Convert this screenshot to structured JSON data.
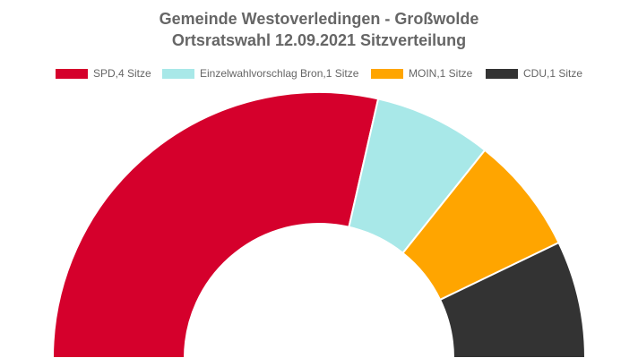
{
  "chart_data": {
    "type": "pie",
    "variant": "half-donut",
    "title": [
      "Gemeinde Westoverledingen - Großwolde",
      "Ortsratswahl 12.09.2021 Sitzverteilung"
    ],
    "legend_position": "top",
    "categories": [
      "SPD",
      "Einzelwahlvorschlag Bron",
      "MOIN",
      "CDU"
    ],
    "values": [
      4,
      1,
      1,
      1
    ],
    "legend_labels": [
      "SPD,4 Sitze",
      "Einzelwahlvorschlag Bron,1 Sitze",
      "MOIN,1 Sitze",
      "CDU,1 Sitze"
    ],
    "colors": [
      "#d5002c",
      "#a8e8e8",
      "#ffa500",
      "#333333"
    ]
  }
}
